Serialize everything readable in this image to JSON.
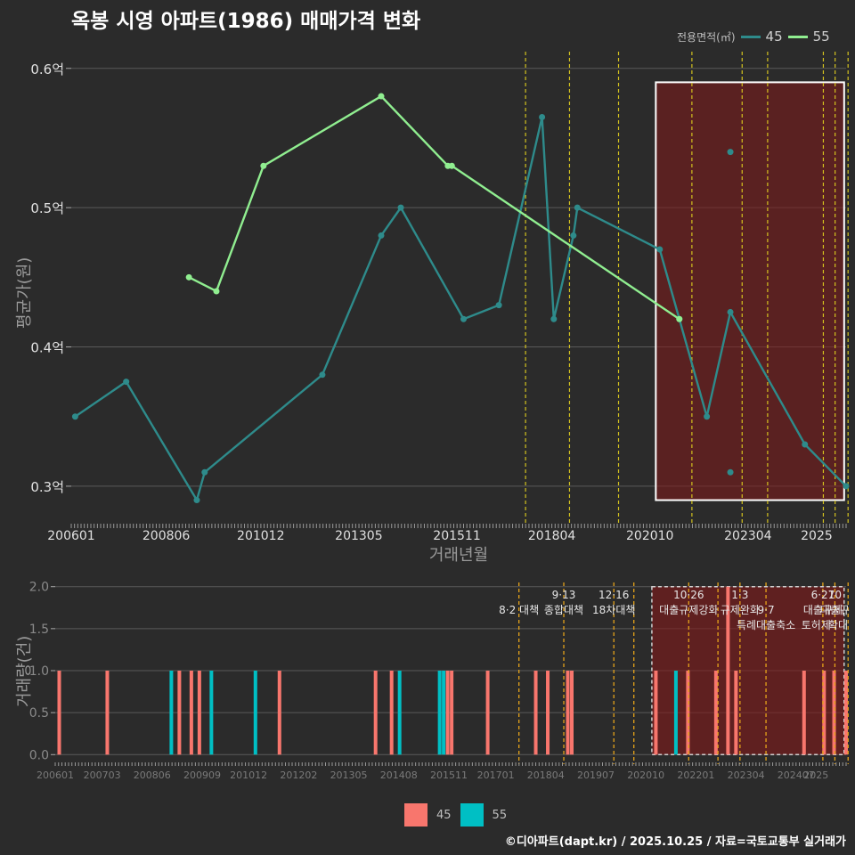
{
  "title": "옥봉 시영 아파트(1986) 매매가격 변화",
  "legend": {
    "title": "전용면적(㎡)",
    "items": [
      {
        "label": "45",
        "color": "#2e8b8b"
      },
      {
        "label": "55",
        "color": "#90ee90"
      }
    ]
  },
  "credit": "©디아파트(dapt.kr) / 2025.10.25 / 자료=국토교통부 실거래가",
  "chart_data": [
    {
      "type": "line",
      "ylabel": "평균가(원)",
      "xlabel": "거래년월",
      "ylim": [
        0.275,
        0.612
      ],
      "yticks": [
        0.3,
        0.4,
        0.5,
        0.6
      ],
      "ytick_labels": [
        "0.3억",
        "0.4억",
        "0.5억",
        "0.6억"
      ],
      "xlim": [
        2006.0,
        2025.75
      ],
      "xticks": [
        2006.0,
        2008.42,
        2010.83,
        2013.33,
        2015.83,
        2018.25,
        2020.75,
        2023.25,
        2025.0
      ],
      "xtick_labels": [
        "200601",
        "200806",
        "201012",
        "201305",
        "201511",
        "201804",
        "202010",
        "202304",
        "2025"
      ],
      "highlight_range": [
        2020.9,
        2025.7
      ],
      "policy_lines": [
        2017.58,
        2018.7,
        2019.95,
        2021.82,
        2023.1,
        2023.75,
        2025.17,
        2025.47,
        2025.8
      ],
      "series": [
        {
          "name": "45",
          "color": "#2e8b8b",
          "points": [
            [
              2006.1,
              0.35
            ],
            [
              2007.4,
              0.375
            ],
            [
              2009.2,
              0.29
            ],
            [
              2009.4,
              0.31
            ],
            [
              2012.4,
              0.38
            ],
            [
              2013.9,
              0.48
            ],
            [
              2014.4,
              0.5
            ],
            [
              2016.0,
              0.42
            ],
            [
              2016.9,
              0.43
            ],
            [
              2018.0,
              0.565
            ],
            [
              2018.3,
              0.42
            ],
            [
              2018.8,
              0.48
            ],
            [
              2018.9,
              0.5
            ],
            [
              2021.0,
              0.47
            ],
            [
              2021.5,
              0.42
            ],
            [
              2022.2,
              0.35
            ],
            [
              2022.8,
              0.425
            ],
            [
              2024.7,
              0.33
            ],
            [
              2025.75,
              0.3
            ]
          ],
          "extra_points": [
            [
              2022.8,
              0.54
            ],
            [
              2022.8,
              0.31
            ]
          ]
        },
        {
          "name": "55",
          "color": "#90ee90",
          "points": [
            [
              2009.0,
              0.45
            ],
            [
              2009.7,
              0.44
            ],
            [
              2010.9,
              0.53
            ],
            [
              2013.9,
              0.58
            ],
            [
              2015.6,
              0.53
            ],
            [
              2015.7,
              0.53
            ],
            [
              2021.5,
              0.42
            ]
          ]
        }
      ]
    },
    {
      "type": "bar",
      "ylabel": "거래량(건)",
      "ylim": [
        -0.05,
        2.05
      ],
      "yticks": [
        0.0,
        0.5,
        1.0,
        1.5,
        2.0
      ],
      "ytick_labels": [
        "0.0",
        "0.5",
        "1.0",
        "1.5",
        "2.0"
      ],
      "xlim": [
        2006.0,
        2025.75
      ],
      "xticks": [
        2006.0,
        2007.17,
        2008.42,
        2009.67,
        2010.83,
        2012.08,
        2013.33,
        2014.58,
        2015.83,
        2017.0,
        2018.25,
        2019.5,
        2020.75,
        2022.0,
        2023.25,
        2024.5,
        2025.0
      ],
      "xtick_labels": [
        "200601",
        "200703",
        "200806",
        "200909",
        "201012",
        "201202",
        "201305",
        "201408",
        "201511",
        "201701",
        "201804",
        "201907",
        "202010",
        "202201",
        "202304",
        "202407",
        "2025"
      ],
      "highlight_range": [
        2020.9,
        2025.7
      ],
      "policy_lines": [
        2017.58,
        2018.7,
        2019.95,
        2020.45,
        2021.82,
        2022.55,
        2023.1,
        2023.75,
        2025.17,
        2025.47,
        2025.8
      ],
      "annotations": [
        {
          "x": 2017.58,
          "row": 1,
          "text": "8·2 대책"
        },
        {
          "x": 2018.7,
          "row": 0,
          "text": "9·13"
        },
        {
          "x": 2018.7,
          "row": 1,
          "text": "종합대책"
        },
        {
          "x": 2019.95,
          "row": 0,
          "text": "12·16"
        },
        {
          "x": 2019.95,
          "row": 1,
          "text": "18차대책"
        },
        {
          "x": 2021.82,
          "row": 0,
          "text": "10·26"
        },
        {
          "x": 2021.82,
          "row": 1,
          "text": "대출규제강화"
        },
        {
          "x": 2023.1,
          "row": 0,
          "text": "1·3"
        },
        {
          "x": 2023.1,
          "row": 1,
          "text": "규제완화"
        },
        {
          "x": 2023.75,
          "row": 1,
          "text": "9·7"
        },
        {
          "x": 2023.75,
          "row": 2,
          "text": "특례대출축소"
        },
        {
          "x": 2025.17,
          "row": 0,
          "text": "6·27"
        },
        {
          "x": 2025.17,
          "row": 1,
          "text": "대출규제"
        },
        {
          "x": 2025.47,
          "row": 0,
          "text": "10"
        },
        {
          "x": 2025.47,
          "row": 1,
          "text": "대출규"
        },
        {
          "x": 2025.0,
          "row": 2,
          "text": "토허제"
        },
        {
          "x": 2025.55,
          "row": 2,
          "text": "확대"
        }
      ],
      "series": [
        {
          "name": "45",
          "color": "#f8766d",
          "x": [
            2006.1,
            2007.3,
            2009.1,
            2009.4,
            2009.6,
            2011.6,
            2014.0,
            2014.4,
            2015.8,
            2015.9,
            2016.8,
            2018.0,
            2018.3,
            2018.8,
            2018.9,
            2021.0,
            2021.8,
            2022.5,
            2022.8,
            2023.0,
            2024.7,
            2025.2,
            2025.45,
            2025.75
          ],
          "values": [
            1,
            1,
            1,
            1,
            1,
            1,
            1,
            1,
            1,
            1,
            1,
            1,
            1,
            1,
            1,
            1,
            1,
            1,
            2,
            1,
            1,
            1,
            1,
            1
          ]
        },
        {
          "name": "55",
          "color": "#00bfc4",
          "x": [
            2008.9,
            2009.9,
            2011.0,
            2014.6,
            2015.6,
            2015.7,
            2021.5
          ],
          "values": [
            1,
            1,
            1,
            1,
            1,
            1,
            1
          ]
        }
      ]
    }
  ]
}
